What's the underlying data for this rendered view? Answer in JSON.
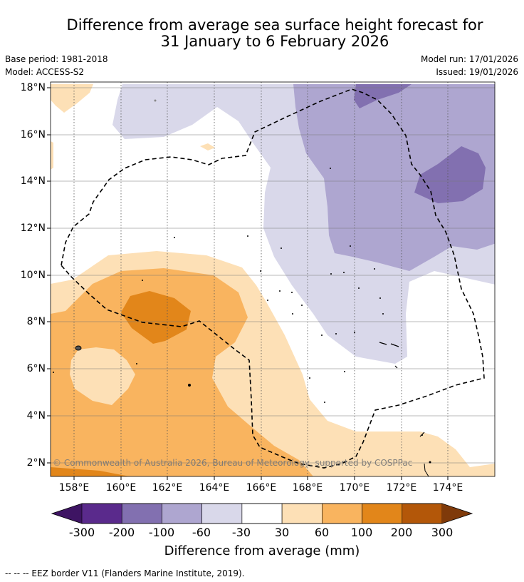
{
  "title": {
    "line1": "Difference from average sea surface height forecast for",
    "line2": "31 January to 6 February 2026"
  },
  "meta": {
    "base_period": "Base period: 1981-2018",
    "model": "Model: ACCESS-S2",
    "model_run": "Model run: 17/01/2026",
    "issued": "Issued: 19/01/2026"
  },
  "axes": {
    "lat_labels": [
      "18°N",
      "16°N",
      "14°N",
      "12°N",
      "10°N",
      "8°N",
      "6°N",
      "4°N",
      "2°N"
    ],
    "lon_labels": [
      "158°E",
      "160°E",
      "162°E",
      "164°E",
      "166°E",
      "168°E",
      "170°E",
      "172°E",
      "174°E"
    ]
  },
  "copyright": "© Commonwealth of Australia 2026, Bureau of Meteorology, supported by COSPPac",
  "colorbar": {
    "title": "Difference from average (mm)",
    "tick_labels": [
      "-300",
      "-200",
      "-100",
      "-60",
      "-30",
      "30",
      "60",
      "100",
      "200",
      "300"
    ],
    "colors": [
      "#3e1463",
      "#5a2a8c",
      "#8270b0",
      "#aea6d0",
      "#d9d8ea",
      "#ffffff",
      "#fde0b6",
      "#f9b45f",
      "#e2861a",
      "#b35709",
      "#7f3a0a"
    ]
  },
  "legend_note": "--  --  -- EEZ border V11 (Flanders Marine Institute, 2019)."
}
